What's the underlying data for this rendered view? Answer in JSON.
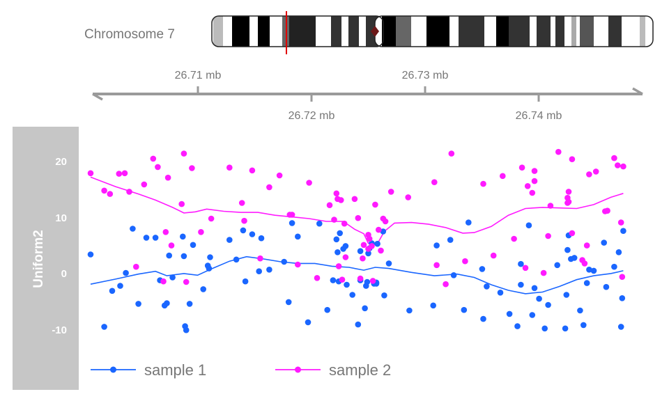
{
  "ideogram": {
    "label": "Chromosome 7",
    "highlight_color": "#e00000"
  },
  "genome_axis": {
    "ticks_top": [
      "26.71 mb",
      "26.73 mb"
    ],
    "ticks_bottom": [
      "26.72 mb",
      "26.74 mb"
    ]
  },
  "track": {
    "title": "Uniform2"
  },
  "chart_data": {
    "type": "scatter",
    "ylabel": "Uniform2",
    "ylim": [
      -20,
      24
    ],
    "yticks": [
      "20",
      "10",
      "0",
      "-10"
    ],
    "xlim": [
      26.7008,
      26.7499
    ],
    "series": [
      {
        "name": "sample 1",
        "color": "#1a66ff",
        "points": [
          [
            26.7008,
            3.6
          ],
          [
            26.702,
            -9.3
          ],
          [
            26.7027,
            -2.9
          ],
          [
            26.7034,
            -2.0
          ],
          [
            26.7039,
            0.3
          ],
          [
            26.7045,
            8.2
          ],
          [
            26.705,
            -5.2
          ],
          [
            26.7057,
            6.6
          ],
          [
            26.7065,
            6.6
          ],
          [
            26.7069,
            -1.0
          ],
          [
            26.7073,
            -5.5
          ],
          [
            26.7075,
            -5.1
          ],
          [
            26.7077,
            3.4
          ],
          [
            26.708,
            -0.5
          ],
          [
            26.7089,
            6.8
          ],
          [
            26.709,
            3.3
          ],
          [
            26.7091,
            -9.2
          ],
          [
            26.7092,
            -9.9
          ],
          [
            26.7095,
            -5.2
          ],
          [
            26.7098,
            5.3
          ],
          [
            26.7107,
            -2.6
          ],
          [
            26.7111,
            1.6
          ],
          [
            26.7112,
            1.1
          ],
          [
            26.7113,
            3.1
          ],
          [
            26.713,
            6.2
          ],
          [
            26.7136,
            2.7
          ],
          [
            26.7142,
            7.9
          ],
          [
            26.7144,
            -1.2
          ],
          [
            26.715,
            7.2
          ],
          [
            26.7156,
            0.6
          ],
          [
            26.7158,
            6.5
          ],
          [
            26.7165,
            0.9
          ],
          [
            26.7178,
            2.3
          ],
          [
            26.7182,
            -4.9
          ],
          [
            26.7185,
            9.2
          ],
          [
            26.719,
            6.8
          ],
          [
            26.7199,
            -8.5
          ],
          [
            26.7209,
            9.1
          ],
          [
            26.7216,
            -6.3
          ],
          [
            26.7221,
            -1.0
          ],
          [
            26.7224,
            6.3
          ],
          [
            26.7225,
            4.0
          ],
          [
            26.7226,
            -1.2
          ],
          [
            26.7227,
            7.4
          ],
          [
            26.723,
            4.6
          ],
          [
            26.7232,
            5.1
          ],
          [
            26.7233,
            -1.8
          ],
          [
            26.7238,
            -3.6
          ],
          [
            26.7243,
            -8.9
          ],
          [
            26.7245,
            -1.0
          ],
          [
            26.7245,
            4.2
          ],
          [
            26.7249,
            -6.0
          ],
          [
            26.725,
            -2.0
          ],
          [
            26.7251,
            -1.3
          ],
          [
            26.7252,
            3.8
          ],
          [
            26.7253,
            4.7
          ],
          [
            26.7255,
            5.6
          ],
          [
            26.7257,
            -1.6
          ],
          [
            26.7259,
            -1.6
          ],
          [
            26.7259,
            -1.4
          ],
          [
            26.726,
            5.5
          ],
          [
            26.7265,
            7.7
          ],
          [
            26.7266,
            -3.7
          ],
          [
            26.727,
            2.0
          ],
          [
            26.7288,
            -6.4
          ],
          [
            26.7309,
            -5.5
          ],
          [
            26.7312,
            5.2
          ],
          [
            26.7324,
            6.2
          ],
          [
            26.7327,
            -0.1
          ],
          [
            26.7336,
            -6.3
          ],
          [
            26.734,
            9.3
          ],
          [
            26.7352,
            1.0
          ],
          [
            26.7353,
            -7.9
          ],
          [
            26.7356,
            -2.1
          ],
          [
            26.7368,
            -3.2
          ],
          [
            26.7376,
            -7.0
          ],
          [
            26.7383,
            -9.2
          ],
          [
            26.7386,
            1.9
          ],
          [
            26.7386,
            -1.8
          ],
          [
            26.7393,
            8.8
          ],
          [
            26.7396,
            -7.2
          ],
          [
            26.7398,
            -2.4
          ],
          [
            26.7402,
            -4.3
          ],
          [
            26.7407,
            -9.6
          ],
          [
            26.741,
            -5.4
          ],
          [
            26.7418,
            1.7
          ],
          [
            26.7425,
            -9.6
          ],
          [
            26.7426,
            -3.6
          ],
          [
            26.7427,
            4.4
          ],
          [
            26.7428,
            7.0
          ],
          [
            26.743,
            2.8
          ],
          [
            26.7433,
            3.0
          ],
          [
            26.7438,
            -6.4
          ],
          [
            26.7441,
            -9.0
          ],
          [
            26.7444,
            -1.5
          ],
          [
            26.7446,
            0.9
          ],
          [
            26.745,
            0.7
          ],
          [
            26.7459,
            5.7
          ],
          [
            26.7461,
            -2.2
          ],
          [
            26.7468,
            1.4
          ],
          [
            26.7472,
            4.0
          ],
          [
            26.7474,
            -9.3
          ],
          [
            26.7475,
            -4.2
          ],
          [
            26.7476,
            7.8
          ]
        ],
        "smooth": [
          [
            26.7008,
            -1.7
          ],
          [
            26.703,
            -0.8
          ],
          [
            26.705,
            0.1
          ],
          [
            26.7065,
            0.6
          ],
          [
            26.7075,
            -0.2
          ],
          [
            26.709,
            0.2
          ],
          [
            26.7102,
            -0.1
          ],
          [
            26.7115,
            1.1
          ],
          [
            26.713,
            2.4
          ],
          [
            26.7145,
            3.2
          ],
          [
            26.716,
            2.8
          ],
          [
            26.7175,
            2.3
          ],
          [
            26.719,
            2.0
          ],
          [
            26.7205,
            2.0
          ],
          [
            26.722,
            1.5
          ],
          [
            26.7235,
            1.3
          ],
          [
            26.7248,
            0.8
          ],
          [
            26.7258,
            1.3
          ],
          [
            26.727,
            1.1
          ],
          [
            26.729,
            0.4
          ],
          [
            26.731,
            -0.2
          ],
          [
            26.733,
            0.1
          ],
          [
            26.7345,
            -0.5
          ],
          [
            26.736,
            -1.8
          ],
          [
            26.7375,
            -2.8
          ],
          [
            26.739,
            -3.4
          ],
          [
            26.7405,
            -3.1
          ],
          [
            26.742,
            -2.1
          ],
          [
            26.7435,
            -0.9
          ],
          [
            26.745,
            -0.2
          ],
          [
            26.7465,
            0.2
          ],
          [
            26.7476,
            0.7
          ]
        ]
      },
      {
        "name": "sample 2",
        "color": "#ff1aff",
        "points": [
          [
            26.7008,
            18.1
          ],
          [
            26.702,
            15.0
          ],
          [
            26.7025,
            14.4
          ],
          [
            26.7033,
            18.0
          ],
          [
            26.7038,
            18.1
          ],
          [
            26.7042,
            14.8
          ],
          [
            26.7048,
            1.4
          ],
          [
            26.7055,
            16.1
          ],
          [
            26.7063,
            20.7
          ],
          [
            26.7067,
            19.2
          ],
          [
            26.7072,
            -1.2
          ],
          [
            26.7074,
            7.6
          ],
          [
            26.7076,
            17.3
          ],
          [
            26.7079,
            5.2
          ],
          [
            26.7088,
            12.6
          ],
          [
            26.709,
            21.6
          ],
          [
            26.7092,
            -1.3
          ],
          [
            26.7097,
            19.0
          ],
          [
            26.7105,
            7.6
          ],
          [
            26.7114,
            10.0
          ],
          [
            26.713,
            19.1
          ],
          [
            26.7141,
            12.8
          ],
          [
            26.7143,
            9.6
          ],
          [
            26.715,
            18.6
          ],
          [
            26.7157,
            2.9
          ],
          [
            26.7165,
            15.6
          ],
          [
            26.7174,
            17.7
          ],
          [
            26.7183,
            10.7
          ],
          [
            26.7185,
            10.7
          ],
          [
            26.719,
            1.8
          ],
          [
            26.72,
            16.4
          ],
          [
            26.7207,
            -0.6
          ],
          [
            26.7218,
            12.4
          ],
          [
            26.7222,
            9.8
          ],
          [
            26.7224,
            14.5
          ],
          [
            26.7225,
            13.5
          ],
          [
            26.7226,
            1.5
          ],
          [
            26.7228,
            13.3
          ],
          [
            26.7229,
            -0.9
          ],
          [
            26.7231,
            9.1
          ],
          [
            26.7232,
            3.1
          ],
          [
            26.724,
            13.5
          ],
          [
            26.7243,
            10.1
          ],
          [
            26.7245,
            -0.7
          ],
          [
            26.7247,
            2.9
          ],
          [
            26.7248,
            5.3
          ],
          [
            26.7252,
            4.6
          ],
          [
            26.7252,
            7.1
          ],
          [
            26.7253,
            6.4
          ],
          [
            26.7255,
            5.1
          ],
          [
            26.7256,
            -1.1
          ],
          [
            26.7258,
            12.5
          ],
          [
            26.7261,
            8.0
          ],
          [
            26.7263,
            4.3
          ],
          [
            26.7265,
            10.0
          ],
          [
            26.7267,
            9.5
          ],
          [
            26.7272,
            14.8
          ],
          [
            26.7287,
            13.8
          ],
          [
            26.731,
            16.5
          ],
          [
            26.7312,
            1.7
          ],
          [
            26.732,
            -1.7
          ],
          [
            26.7325,
            21.6
          ],
          [
            26.7337,
            2.4
          ],
          [
            26.7353,
            16.2
          ],
          [
            26.7362,
            3.4
          ],
          [
            26.737,
            17.6
          ],
          [
            26.738,
            6.4
          ],
          [
            26.7387,
            19.1
          ],
          [
            26.739,
            1.2
          ],
          [
            26.7392,
            15.8
          ],
          [
            26.7396,
            14.6
          ],
          [
            26.7398,
            18.5
          ],
          [
            26.7398,
            16.7
          ],
          [
            26.7406,
            0.3
          ],
          [
            26.741,
            6.9
          ],
          [
            26.7412,
            12.3
          ],
          [
            26.7419,
            21.9
          ],
          [
            26.7427,
            12.8
          ],
          [
            26.7427,
            13.7
          ],
          [
            26.7428,
            14.8
          ],
          [
            26.7428,
            13.0
          ],
          [
            26.7431,
            20.6
          ],
          [
            26.7431,
            7.4
          ],
          [
            26.744,
            2.6
          ],
          [
            26.7442,
            2.0
          ],
          [
            26.7444,
            5.2
          ],
          [
            26.7446,
            17.9
          ],
          [
            26.7452,
            18.4
          ],
          [
            26.746,
            11.3
          ],
          [
            26.7462,
            11.4
          ],
          [
            26.7468,
            20.8
          ],
          [
            26.7471,
            19.5
          ],
          [
            26.7474,
            9.3
          ],
          [
            26.7475,
            -0.4
          ],
          [
            26.7476,
            19.3
          ]
        ],
        "smooth": [
          [
            26.7008,
            17.4
          ],
          [
            26.703,
            15.7
          ],
          [
            26.705,
            14.4
          ],
          [
            26.7065,
            13.3
          ],
          [
            26.708,
            12.0
          ],
          [
            26.709,
            11.0
          ],
          [
            26.71,
            11.2
          ],
          [
            26.711,
            11.7
          ],
          [
            26.7125,
            11.3
          ],
          [
            26.714,
            11.1
          ],
          [
            26.7155,
            11.1
          ],
          [
            26.717,
            10.6
          ],
          [
            26.7185,
            10.3
          ],
          [
            26.72,
            10.0
          ],
          [
            26.7215,
            9.5
          ],
          [
            26.723,
            9.5
          ],
          [
            26.724,
            8.1
          ],
          [
            26.7248,
            7.3
          ],
          [
            26.7252,
            5.6
          ],
          [
            26.7257,
            5.4
          ],
          [
            26.7261,
            5.9
          ],
          [
            26.7266,
            7.7
          ],
          [
            26.7275,
            9.2
          ],
          [
            26.729,
            9.3
          ],
          [
            26.7305,
            9.0
          ],
          [
            26.732,
            8.4
          ],
          [
            26.7335,
            7.4
          ],
          [
            26.7345,
            7.5
          ],
          [
            26.736,
            8.6
          ],
          [
            26.7375,
            10.6
          ],
          [
            26.739,
            11.8
          ],
          [
            26.7405,
            12.0
          ],
          [
            26.742,
            11.9
          ],
          [
            26.7435,
            11.8
          ],
          [
            26.745,
            12.5
          ],
          [
            26.7465,
            13.8
          ],
          [
            26.7476,
            14.5
          ]
        ]
      }
    ]
  },
  "legend": [
    {
      "label": "sample 1",
      "color": "#1a66ff"
    },
    {
      "label": "sample 2",
      "color": "#ff1aff"
    }
  ]
}
